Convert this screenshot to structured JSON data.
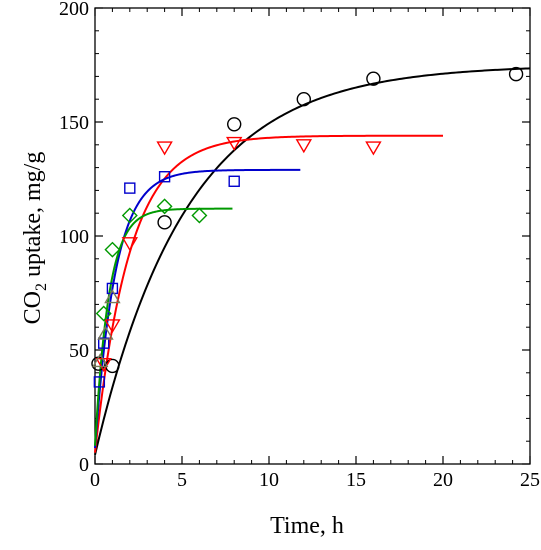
{
  "chart_data": {
    "type": "scatter",
    "xlabel": "Time, h",
    "ylabel_main": "CO",
    "ylabel_sub": "2",
    "ylabel_rest": " uptake, mg/g",
    "xlim": [
      0,
      25
    ],
    "ylim": [
      0,
      200
    ],
    "x_ticks": [
      0,
      5,
      10,
      15,
      20,
      25
    ],
    "y_ticks": [
      0,
      50,
      100,
      150,
      200
    ],
    "x_tick_labels": [
      "0",
      "5",
      "10",
      "15",
      "20",
      "25"
    ],
    "y_tick_labels": [
      "0",
      "50",
      "100",
      "150",
      "200"
    ],
    "grid": false,
    "series": [
      {
        "marker": "circle",
        "color": "#000000",
        "points": [
          [
            0.2,
            44
          ],
          [
            1.0,
            43
          ],
          [
            4.0,
            106
          ],
          [
            8.0,
            149
          ],
          [
            12.0,
            160
          ],
          [
            16.0,
            169
          ],
          [
            24.2,
            171
          ]
        ],
        "fit": {
          "qe": 175,
          "k": 0.19,
          "y0": 4,
          "x_end": 25
        }
      },
      {
        "marker": "triangle-down",
        "color": "#ff0000",
        "points": [
          [
            0.5,
            44
          ],
          [
            1.0,
            61
          ],
          [
            2.0,
            97
          ],
          [
            4.0,
            139
          ],
          [
            8.0,
            141
          ],
          [
            12.0,
            140
          ],
          [
            16.0,
            139
          ]
        ],
        "fit": {
          "qe": 144,
          "k": 0.5,
          "y0": 5,
          "x_end": 20
        }
      },
      {
        "marker": "square",
        "color": "#0000cc",
        "points": [
          [
            0.25,
            36
          ],
          [
            0.5,
            53
          ],
          [
            1.0,
            77
          ],
          [
            2.0,
            121
          ],
          [
            4.0,
            126
          ],
          [
            8.0,
            124
          ]
        ],
        "fit": {
          "qe": 129,
          "k": 0.85,
          "y0": 7,
          "x_end": 11.8
        }
      },
      {
        "marker": "diamond",
        "color": "#009900",
        "points": [
          [
            0.5,
            66
          ],
          [
            1.0,
            94
          ],
          [
            2.0,
            109
          ],
          [
            4.0,
            113
          ],
          [
            6.0,
            109
          ]
        ],
        "fit": {
          "qe": 112,
          "k": 1.25,
          "y0": 8,
          "x_end": 7.9
        }
      },
      {
        "marker": "triangle-up",
        "color": "#7a7a5a",
        "points": [
          [
            0.3,
            45
          ],
          [
            0.6,
            57
          ],
          [
            1.0,
            73
          ]
        ],
        "fit": null
      }
    ]
  }
}
